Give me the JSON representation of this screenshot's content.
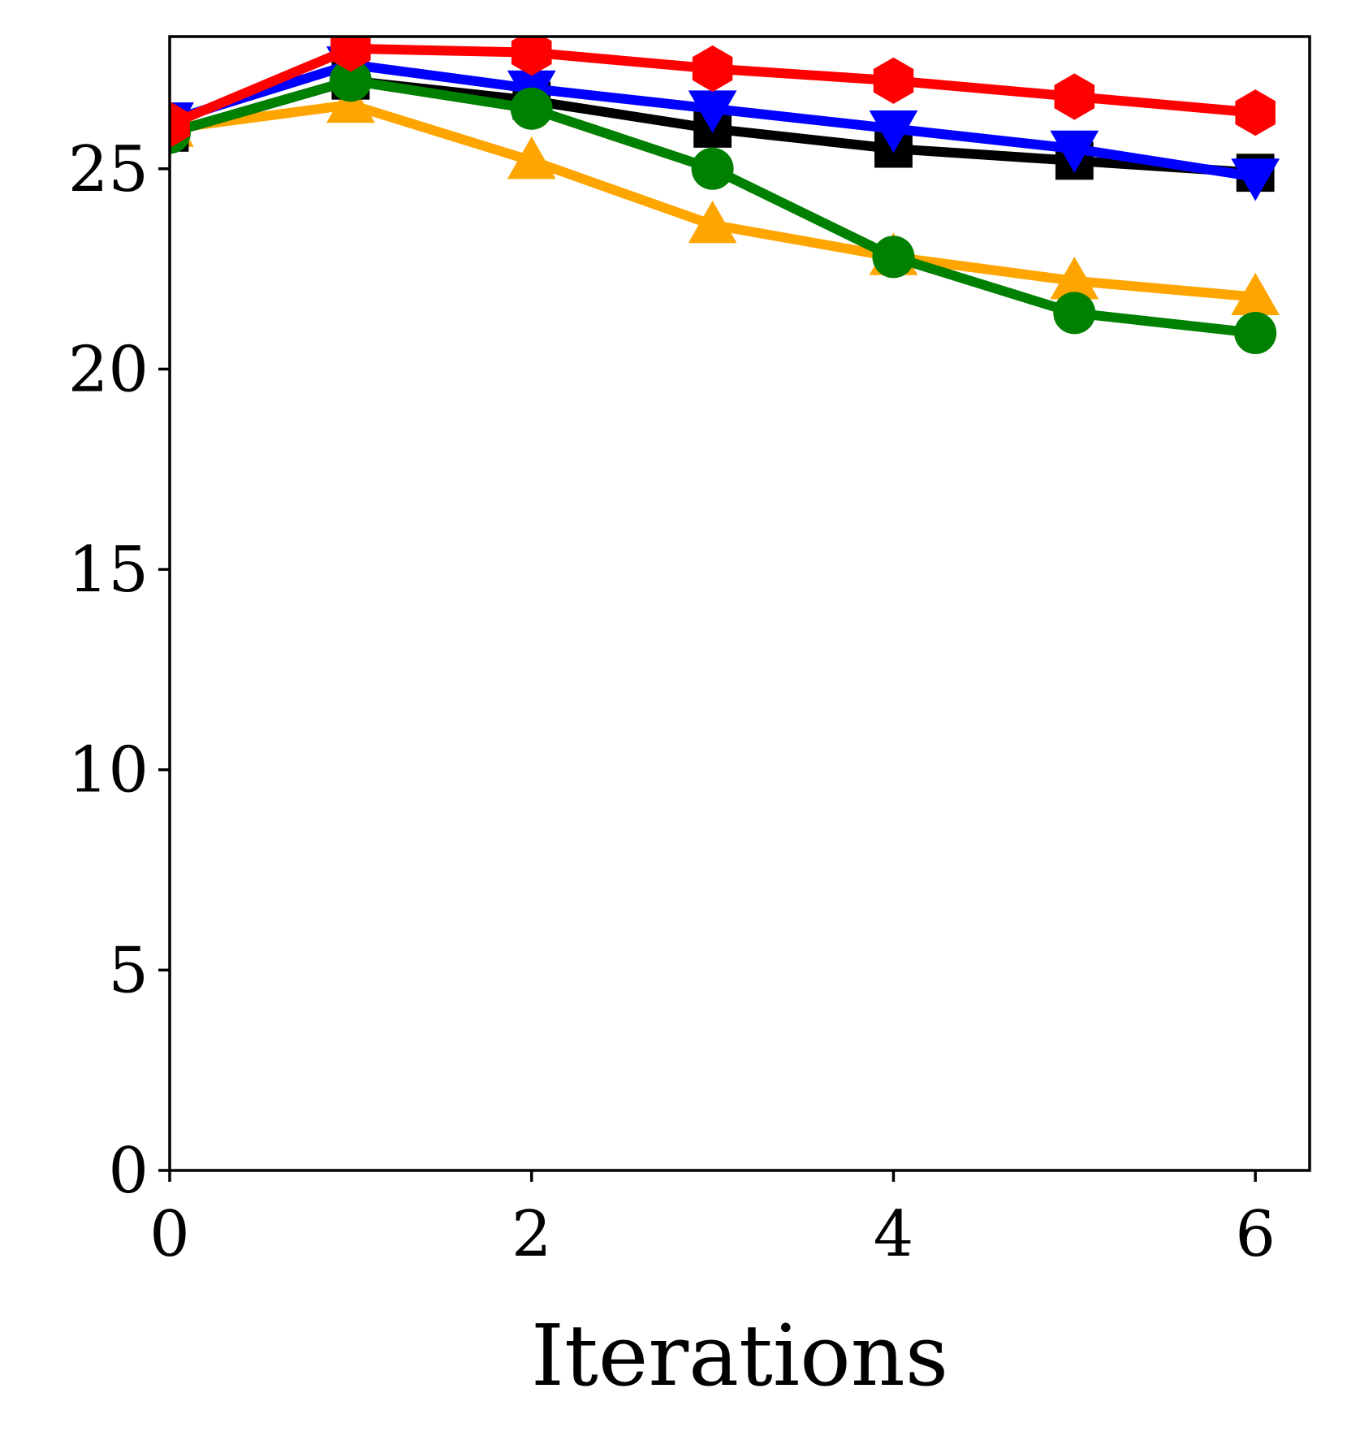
{
  "chart_data": {
    "type": "line",
    "title": "",
    "xlabel": "Iterations",
    "ylabel": "",
    "x": [
      0,
      1,
      2,
      3,
      4,
      5,
      6
    ],
    "xlim": [
      0,
      6.3
    ],
    "ylim": [
      0,
      28.3
    ],
    "xticks": [
      0,
      2,
      4,
      6
    ],
    "xtick_labels": [
      "0",
      "2",
      "4",
      "6"
    ],
    "yticks": [
      0,
      5,
      10,
      15,
      20,
      25
    ],
    "ytick_labels": [
      "0",
      "5",
      "10",
      "15",
      "20",
      "25"
    ],
    "grid": false,
    "legend": "none",
    "series": [
      {
        "name": "orange",
        "color": "#ffa500",
        "marker": "triangle-up",
        "values": [
          26.0,
          26.6,
          25.2,
          23.6,
          22.8,
          22.2,
          21.8
        ]
      },
      {
        "name": "black",
        "color": "#000000",
        "marker": "square",
        "values": [
          25.9,
          27.2,
          26.7,
          26.0,
          25.5,
          25.2,
          24.9
        ]
      },
      {
        "name": "blue",
        "color": "#0000ff",
        "marker": "triangle-down",
        "values": [
          26.2,
          27.6,
          27.0,
          26.5,
          26.0,
          25.5,
          24.8
        ]
      },
      {
        "name": "green",
        "color": "#008000",
        "marker": "circle",
        "values": [
          25.9,
          27.2,
          26.5,
          25.0,
          22.8,
          21.4,
          20.9
        ]
      },
      {
        "name": "red",
        "color": "#ff0000",
        "marker": "hexagon",
        "values": [
          26.1,
          28.0,
          27.9,
          27.5,
          27.2,
          26.8,
          26.4
        ]
      }
    ]
  }
}
